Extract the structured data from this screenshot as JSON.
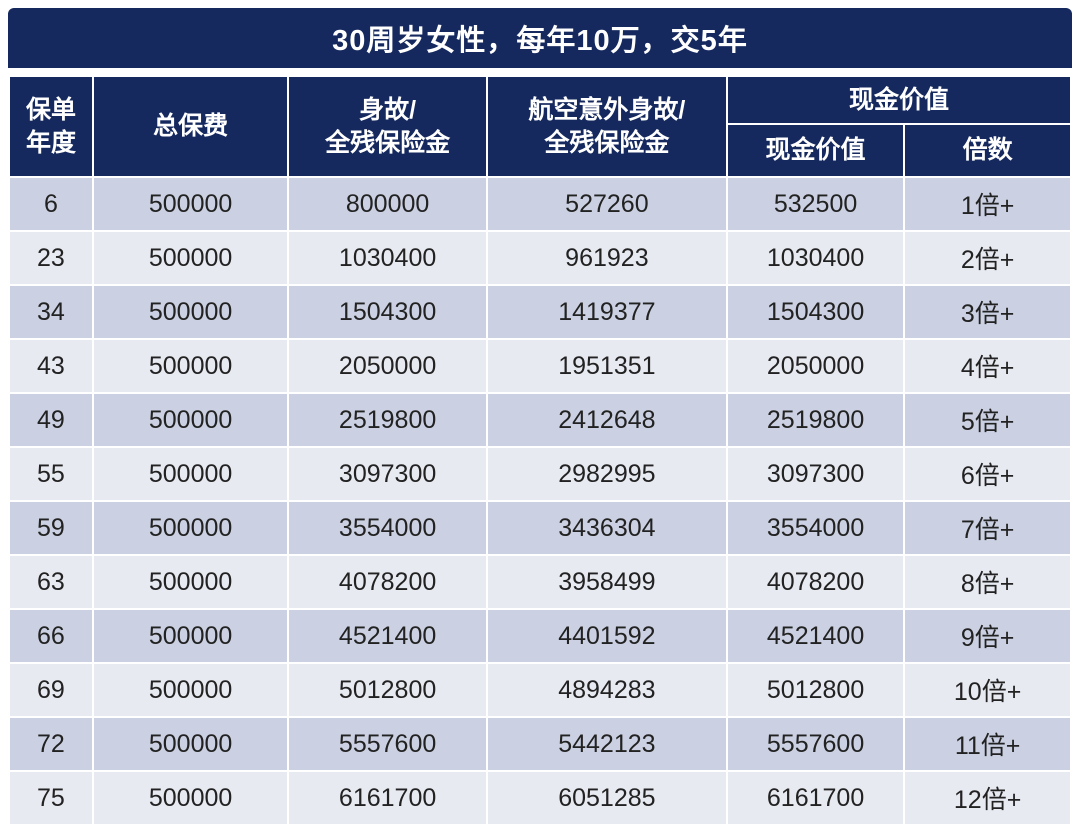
{
  "title_bar": {
    "text": "30周岁女性，每年10万，交5年"
  },
  "table_header": {
    "policy_year": "保单\n年度",
    "total_premium": "总保费",
    "death_benefit": "身故/\n全残保险金",
    "aviation_benefit": "航空意外身故/\n全残保险金",
    "cash_value_group": "现金价值",
    "cash_value": "现金价值",
    "multiple": "倍数"
  },
  "colors": {
    "header_navy": "#15295e",
    "row_dark": "#cbd1e2",
    "row_light": "#e8eaf2",
    "header_text": "#ffffff",
    "cell_text": "#222222"
  },
  "chart_data": {
    "type": "table",
    "title": "30周岁女性，每年10万，交5年",
    "columns": [
      "保单年度",
      "总保费",
      "身故/全残保险金",
      "航空意外身故/全残保险金",
      "现金价值",
      "倍数"
    ],
    "column_groups": [
      {
        "label": "现金价值",
        "spans": [
          "现金价值",
          "倍数"
        ]
      }
    ],
    "rows": [
      [
        "6",
        "500000",
        "800000",
        "527260",
        "532500",
        "1倍+"
      ],
      [
        "23",
        "500000",
        "1030400",
        "961923",
        "1030400",
        "2倍+"
      ],
      [
        "34",
        "500000",
        "1504300",
        "1419377",
        "1504300",
        "3倍+"
      ],
      [
        "43",
        "500000",
        "2050000",
        "1951351",
        "2050000",
        "4倍+"
      ],
      [
        "49",
        "500000",
        "2519800",
        "2412648",
        "2519800",
        "5倍+"
      ],
      [
        "55",
        "500000",
        "3097300",
        "2982995",
        "3097300",
        "6倍+"
      ],
      [
        "59",
        "500000",
        "3554000",
        "3436304",
        "3554000",
        "7倍+"
      ],
      [
        "63",
        "500000",
        "4078200",
        "3958499",
        "4078200",
        "8倍+"
      ],
      [
        "66",
        "500000",
        "4521400",
        "4401592",
        "4521400",
        "9倍+"
      ],
      [
        "69",
        "500000",
        "5012800",
        "4894283",
        "5012800",
        "10倍+"
      ],
      [
        "72",
        "500000",
        "5557600",
        "5442123",
        "5557600",
        "11倍+"
      ],
      [
        "75",
        "500000",
        "6161700",
        "6051285",
        "6161700",
        "12倍+"
      ]
    ]
  }
}
